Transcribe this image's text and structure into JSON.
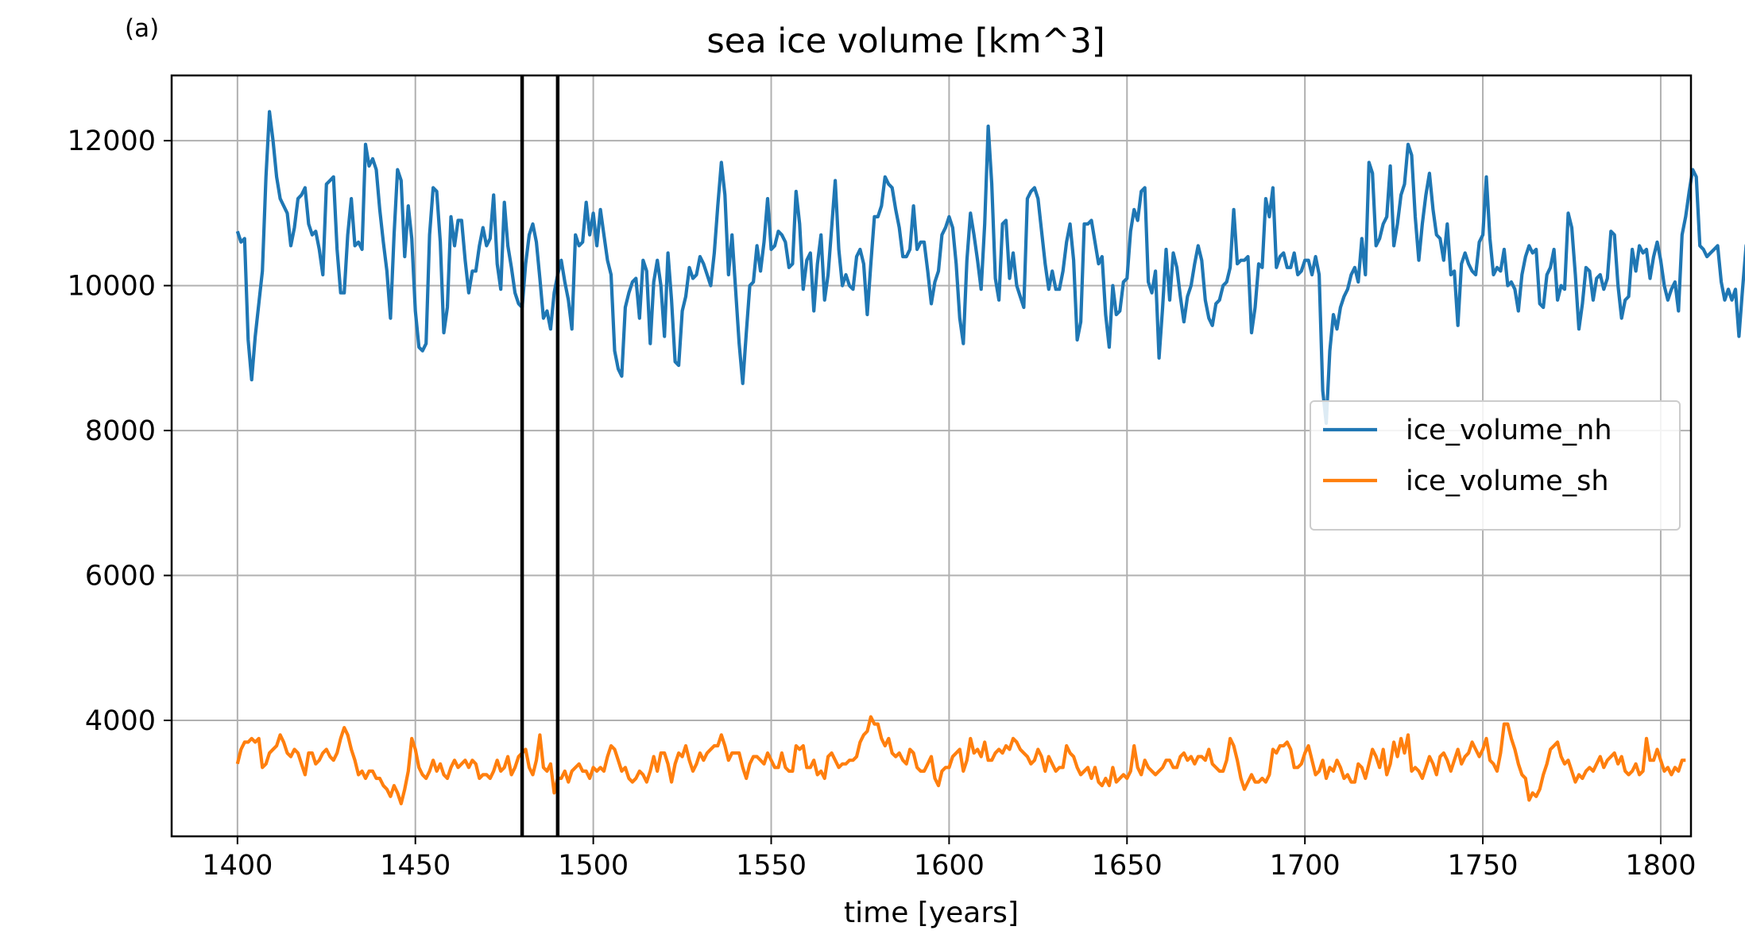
{
  "panel_label": "(a)",
  "chart_data": {
    "type": "line",
    "title": "sea ice volume [km^3]",
    "xlabel": "time [years]",
    "ylabel": "",
    "xlim": [
      1381.5,
      1808.5
    ],
    "ylim": [
      2400,
      12900
    ],
    "xticks": [
      1400,
      1450,
      1500,
      1550,
      1600,
      1650,
      1700,
      1750,
      1800
    ],
    "yticks": [
      4000,
      6000,
      8000,
      10000,
      12000
    ],
    "grid": true,
    "legend_position": "right",
    "vlines": [
      1480,
      1490
    ],
    "vline_color": "#000000",
    "x_start": 1400,
    "x_step": 1,
    "series": [
      {
        "name": "ice_volume_nh",
        "color": "#1f77b4",
        "values": [
          10750,
          10600,
          10650,
          9250,
          8700,
          9300,
          9750,
          10200,
          11500,
          12400,
          12000,
          11500,
          11200,
          11100,
          11000,
          10550,
          10800,
          11200,
          11250,
          11350,
          10850,
          10700,
          10750,
          10500,
          10150,
          11400,
          11450,
          11500,
          10500,
          9900,
          9900,
          10700,
          11200,
          10550,
          10600,
          10500,
          11950,
          11650,
          11750,
          11600,
          11050,
          10600,
          10200,
          9550,
          10700,
          11600,
          11450,
          10400,
          11100,
          10650,
          9650,
          9150,
          9100,
          9200,
          10700,
          11350,
          11300,
          10600,
          9350,
          9700,
          10950,
          10550,
          10900,
          10900,
          10350,
          9900,
          10200,
          10200,
          10550,
          10800,
          10550,
          10650,
          11250,
          10300,
          9950,
          11150,
          10550,
          10250,
          9900,
          9750,
          9700,
          10300,
          10700,
          10850,
          10600,
          10100,
          9550,
          9650,
          9400,
          9900,
          10150,
          10350,
          10050,
          9800,
          9400,
          10700,
          10550,
          10600,
          11150,
          10700,
          11000,
          10550,
          11050,
          10700,
          10350,
          10150,
          9100,
          8850,
          8750,
          9700,
          9900,
          10050,
          10100,
          9550,
          10350,
          10200,
          9200,
          10050,
          10350,
          10000,
          9300,
          10450,
          9800,
          8950,
          8900,
          9650,
          9850,
          10250,
          10100,
          10150,
          10400,
          10300,
          10150,
          10000,
          10450,
          11100,
          11700,
          11250,
          10150,
          10700,
          9950,
          9200,
          8650,
          9350,
          10000,
          10050,
          10550,
          10200,
          10600,
          11200,
          10500,
          10550,
          10750,
          10700,
          10600,
          10250,
          10300,
          11300,
          10850,
          9950,
          10350,
          10450,
          9650,
          10300,
          10700,
          9800,
          10150,
          10800,
          11450,
          10500,
          10000,
          10150,
          10000,
          9950,
          10400,
          10500,
          10300,
          9600,
          10300,
          10950,
          10950,
          11100,
          11500,
          11400,
          11350,
          11050,
          10800,
          10400,
          10400,
          10500,
          11100,
          10500,
          10600,
          10600,
          10200,
          9750,
          10050,
          10200,
          10700,
          10800,
          10950,
          10800,
          10300,
          9550,
          9200,
          10350,
          11000,
          10700,
          10350,
          9950,
          10850,
          12200,
          11400,
          10100,
          9800,
          10850,
          10900,
          10100,
          10450,
          10000,
          9850,
          9700,
          11200,
          11300,
          11350,
          11200,
          10750,
          10300,
          9950,
          10200,
          9950,
          9950,
          10200,
          10600,
          10850,
          10350,
          9250,
          9500,
          10850,
          10850,
          10900,
          10600,
          10300,
          10400,
          9600,
          9150,
          10000,
          9600,
          9650,
          10050,
          10100,
          10750,
          11050,
          10900,
          11300,
          11350,
          10050,
          9900,
          10200,
          9000,
          9700,
          10500,
          9800,
          10450,
          10250,
          9850,
          9500,
          9850,
          10000,
          10300,
          10550,
          10350,
          9800,
          9550,
          9450,
          9750,
          9800,
          10000,
          10050,
          10250,
          11050,
          10300,
          10350,
          10350,
          10400,
          9350,
          9700,
          10300,
          10250,
          11200,
          10950,
          11350,
          10250,
          10400,
          10450,
          10250,
          10250,
          10450,
          10150,
          10200,
          10350,
          10350,
          10150,
          10400,
          10150,
          8550,
          8100,
          9100,
          9600,
          9400,
          9700,
          9850,
          9950,
          10150,
          10250,
          10050,
          10650,
          10150,
          11700,
          11550,
          10550,
          10650,
          10850,
          10950,
          11650,
          10550,
          10850,
          11250,
          11400,
          11950,
          11800,
          10950,
          10350,
          10850,
          11250,
          11550,
          11050,
          10700,
          10650,
          10350,
          10850,
          10150,
          10200,
          9450,
          10300,
          10450,
          10300,
          10200,
          10150,
          10600,
          10700,
          11500,
          10650,
          10150,
          10250,
          10200,
          10500,
          10000,
          10050,
          9950,
          9650,
          10150,
          10400,
          10550,
          10450,
          10500,
          9750,
          9700,
          10150,
          10250,
          10500,
          9800,
          10000,
          9950,
          11000,
          10800,
          10150,
          9400,
          9750,
          10250,
          10200,
          9800,
          10100,
          10150,
          9950,
          10100,
          10750,
          10700,
          10000,
          9550,
          9800,
          9850,
          10500,
          10200,
          10550,
          10450,
          10500,
          10100,
          10400,
          10600,
          10350,
          10000,
          9800,
          9950,
          10050,
          9650,
          10700,
          10950,
          11300,
          11600,
          11500,
          10550,
          10500,
          10400,
          10450,
          10500,
          10550,
          10050,
          9800,
          9950,
          9800,
          9950,
          9300,
          9950,
          10550,
          10700,
          11150,
          12000,
          11150,
          10450,
          10300,
          10150,
          9800,
          9700,
          9950,
          10350,
          10550,
          10650,
          11050,
          11550,
          11100,
          10700,
          10100,
          10200,
          10100,
          9900,
          9850,
          10350,
          10500,
          10250,
          9700,
          9150,
          9500,
          10500,
          10450
        ]
      },
      {
        "name": "ice_volume_sh",
        "color": "#ff7f0e",
        "values": [
          3400,
          3600,
          3700,
          3700,
          3750,
          3700,
          3750,
          3350,
          3400,
          3550,
          3600,
          3650,
          3800,
          3700,
          3550,
          3500,
          3600,
          3550,
          3400,
          3250,
          3550,
          3550,
          3400,
          3450,
          3550,
          3600,
          3500,
          3450,
          3550,
          3750,
          3900,
          3800,
          3600,
          3450,
          3250,
          3300,
          3200,
          3300,
          3300,
          3200,
          3200,
          3100,
          3050,
          2950,
          3100,
          3000,
          2850,
          3050,
          3300,
          3750,
          3600,
          3350,
          3250,
          3200,
          3300,
          3450,
          3300,
          3400,
          3250,
          3200,
          3350,
          3450,
          3350,
          3400,
          3450,
          3350,
          3450,
          3400,
          3200,
          3250,
          3250,
          3200,
          3300,
          3450,
          3300,
          3350,
          3500,
          3250,
          3350,
          3500,
          3550,
          3600,
          3350,
          3250,
          3450,
          3800,
          3350,
          3300,
          3400,
          3000,
          3200,
          3200,
          3300,
          3150,
          3300,
          3350,
          3400,
          3300,
          3300,
          3200,
          3350,
          3300,
          3350,
          3300,
          3500,
          3650,
          3600,
          3450,
          3300,
          3350,
          3200,
          3150,
          3200,
          3300,
          3250,
          3150,
          3300,
          3500,
          3300,
          3550,
          3550,
          3400,
          3150,
          3400,
          3550,
          3500,
          3650,
          3450,
          3300,
          3400,
          3550,
          3450,
          3550,
          3600,
          3650,
          3650,
          3800,
          3650,
          3450,
          3550,
          3550,
          3550,
          3350,
          3200,
          3400,
          3500,
          3500,
          3450,
          3400,
          3550,
          3450,
          3350,
          3350,
          3550,
          3350,
          3300,
          3300,
          3650,
          3600,
          3650,
          3350,
          3350,
          3450,
          3250,
          3300,
          3200,
          3500,
          3550,
          3450,
          3350,
          3400,
          3400,
          3450,
          3450,
          3500,
          3700,
          3800,
          3850,
          4050,
          3950,
          3950,
          3750,
          3650,
          3750,
          3550,
          3500,
          3550,
          3450,
          3400,
          3600,
          3550,
          3350,
          3300,
          3300,
          3400,
          3500,
          3200,
          3100,
          3300,
          3350,
          3350,
          3500,
          3550,
          3600,
          3300,
          3450,
          3750,
          3550,
          3600,
          3500,
          3700,
          3450,
          3450,
          3550,
          3600,
          3550,
          3650,
          3600,
          3750,
          3700,
          3600,
          3550,
          3500,
          3400,
          3450,
          3600,
          3500,
          3300,
          3500,
          3400,
          3300,
          3350,
          3350,
          3650,
          3550,
          3500,
          3350,
          3250,
          3300,
          3350,
          3200,
          3350,
          3150,
          3100,
          3200,
          3100,
          3350,
          3150,
          3200,
          3250,
          3200,
          3300,
          3650,
          3350,
          3250,
          3450,
          3350,
          3300,
          3250,
          3300,
          3350,
          3450,
          3450,
          3350,
          3350,
          3500,
          3550,
          3450,
          3500,
          3400,
          3500,
          3500,
          3450,
          3600,
          3400,
          3350,
          3300,
          3300,
          3450,
          3750,
          3650,
          3450,
          3200,
          3050,
          3150,
          3250,
          3150,
          3150,
          3200,
          3150,
          3250,
          3600,
          3550,
          3650,
          3650,
          3700,
          3600,
          3350,
          3350,
          3400,
          3550,
          3650,
          3450,
          3250,
          3300,
          3450,
          3200,
          3350,
          3300,
          3450,
          3350,
          3200,
          3250,
          3150,
          3150,
          3400,
          3350,
          3200,
          3400,
          3600,
          3500,
          3350,
          3600,
          3250,
          3400,
          3700,
          3500,
          3750,
          3550,
          3800,
          3300,
          3350,
          3300,
          3200,
          3350,
          3500,
          3400,
          3250,
          3500,
          3550,
          3450,
          3300,
          3450,
          3600,
          3400,
          3500,
          3550,
          3700,
          3600,
          3500,
          3600,
          3750,
          3450,
          3400,
          3300,
          3550,
          3950,
          3950,
          3750,
          3600,
          3400,
          3250,
          3200,
          2900,
          3000,
          2950,
          3050,
          3250,
          3400,
          3600,
          3650,
          3700,
          3500,
          3400,
          3450,
          3300,
          3150,
          3250,
          3200,
          3300,
          3350,
          3300,
          3400,
          3500,
          3350,
          3450,
          3500,
          3550,
          3400,
          3500,
          3300,
          3250,
          3300,
          3400,
          3250,
          3300,
          3750,
          3450,
          3450,
          3600,
          3450,
          3300,
          3350,
          3250,
          3350,
          3300,
          3450,
          3450
        ]
      }
    ]
  }
}
